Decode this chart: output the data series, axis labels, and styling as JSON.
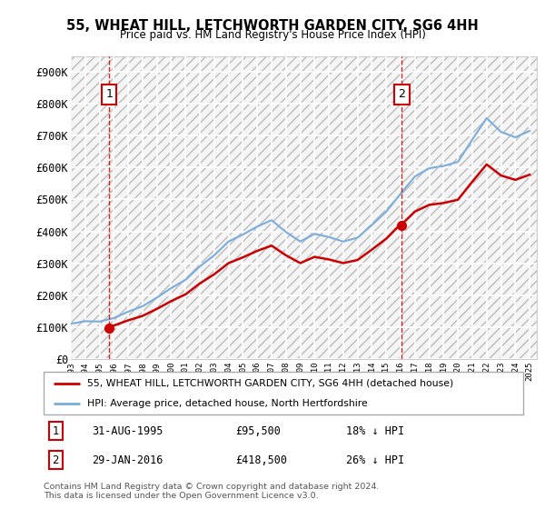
{
  "title": "55, WHEAT HILL, LETCHWORTH GARDEN CITY, SG6 4HH",
  "subtitle": "Price paid vs. HM Land Registry's House Price Index (HPI)",
  "legend_line1": "55, WHEAT HILL, LETCHWORTH GARDEN CITY, SG6 4HH (detached house)",
  "legend_line2": "HPI: Average price, detached house, North Hertfordshire",
  "annotation1": {
    "label": "1",
    "date": "31-AUG-1995",
    "price": "£95,500",
    "pct": "18% ↓ HPI",
    "x_year": 1995.67,
    "y_val": 95500
  },
  "annotation2": {
    "label": "2",
    "date": "29-JAN-2016",
    "price": "£418,500",
    "pct": "26% ↓ HPI",
    "x_year": 2016.08,
    "y_val": 418500
  },
  "footer": "Contains HM Land Registry data © Crown copyright and database right 2024.\nThis data is licensed under the Open Government Licence v3.0.",
  "property_color": "#cc0000",
  "hpi_color": "#7aaddd",
  "ylim": [
    0,
    950000
  ],
  "xlim_start": 1993,
  "xlim_end": 2025.5,
  "yticks": [
    0,
    100000,
    200000,
    300000,
    400000,
    500000,
    600000,
    700000,
    800000,
    900000
  ],
  "ytick_labels": [
    "£0",
    "£100K",
    "£200K",
    "£300K",
    "£400K",
    "£500K",
    "£600K",
    "£700K",
    "£800K",
    "£900K"
  ],
  "xtick_years": [
    1993,
    1994,
    1995,
    1996,
    1997,
    1998,
    1999,
    2000,
    2001,
    2002,
    2003,
    2004,
    2005,
    2006,
    2007,
    2008,
    2009,
    2010,
    2011,
    2012,
    2013,
    2014,
    2015,
    2016,
    2017,
    2018,
    2019,
    2020,
    2021,
    2022,
    2023,
    2024,
    2025
  ],
  "hpi_years": [
    1993,
    1994,
    1995,
    1996,
    1997,
    1998,
    1999,
    2000,
    2001,
    2002,
    2003,
    2004,
    2005,
    2006,
    2007,
    2008,
    2009,
    2010,
    2011,
    2012,
    2013,
    2014,
    2015,
    2016,
    2017,
    2018,
    2019,
    2020,
    2021,
    2022,
    2023,
    2024,
    2025
  ],
  "hpi_values": [
    110000,
    118000,
    117000,
    128000,
    148000,
    165000,
    192000,
    222000,
    248000,
    290000,
    325000,
    368000,
    390000,
    415000,
    435000,
    398000,
    368000,
    392000,
    382000,
    368000,
    380000,
    420000,
    462000,
    518000,
    572000,
    598000,
    605000,
    618000,
    688000,
    755000,
    712000,
    695000,
    715000
  ],
  "prop_years1": [
    1995.67,
    1996,
    1997,
    1998,
    1999,
    2000,
    2001,
    2002,
    2003,
    2004,
    2005,
    2006,
    2007,
    2008,
    2009,
    2010,
    2011,
    2012,
    2013,
    2014,
    2015,
    2016.08
  ],
  "prop_years2": [
    2016.08,
    2016.5,
    2017,
    2018,
    2019,
    2020,
    2021,
    2022,
    2023,
    2024,
    2025
  ],
  "hpi_at_1995": 117000,
  "hpi_at_2016": 518000,
  "sale1_price": 95500,
  "sale2_price": 418500
}
